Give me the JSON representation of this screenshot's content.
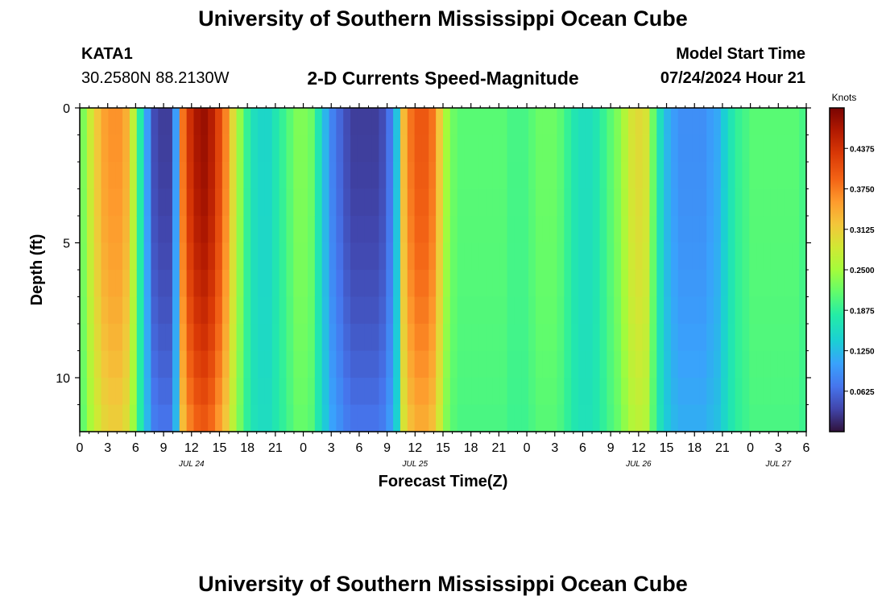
{
  "header": {
    "title": "University of Southern Mississippi Ocean Cube",
    "station_id": "KATA1",
    "coordinates": "30.2580N  88.2130W",
    "subtitle": "2-D Currents Speed-Magnitude",
    "model_start_label": "Model Start Time",
    "model_start_value": "07/24/2024 Hour 21"
  },
  "footer": {
    "title": "University of Southern Mississippi Ocean Cube"
  },
  "chart_data": {
    "type": "heatmap",
    "title": "2-D Currents Speed-Magnitude",
    "xlabel": "Forecast Time(Z)",
    "ylabel": "Depth (ft)",
    "x_tick_labels": [
      "0",
      "3",
      "6",
      "9",
      "12",
      "15",
      "18",
      "21",
      "0",
      "3",
      "6",
      "9",
      "12",
      "15",
      "18",
      "21",
      "0",
      "3",
      "6",
      "9",
      "12",
      "15",
      "18",
      "21",
      "0",
      "3",
      "6"
    ],
    "date_labels": [
      {
        "text": "JUL 24",
        "hour": 12
      },
      {
        "text": "JUL 25",
        "hour": 36
      },
      {
        "text": "JUL 26",
        "hour": 60
      },
      {
        "text": "JUL 27",
        "hour": 75
      }
    ],
    "xlim_hours": [
      0,
      78
    ],
    "y_ticks": [
      "0",
      "5",
      "10"
    ],
    "ylim_ft": [
      0,
      12
    ],
    "colorbar": {
      "label": "Knots",
      "ticks": [
        "0.0625",
        "0.1250",
        "0.1875",
        "0.2500",
        "0.3125",
        "0.3750",
        "0.4375"
      ],
      "range": [
        0,
        0.5
      ]
    },
    "surface_speeds_knots": [
      0.23,
      0.28,
      0.32,
      0.35,
      0.36,
      0.36,
      0.34,
      0.27,
      0.18,
      0.1,
      0.04,
      0.03,
      0.03,
      0.1,
      0.38,
      0.44,
      0.47,
      0.48,
      0.46,
      0.42,
      0.37,
      0.3,
      0.24,
      0.19,
      0.16,
      0.15,
      0.15,
      0.17,
      0.19,
      0.21,
      0.23,
      0.23,
      0.22,
      0.17,
      0.12,
      0.08,
      0.06,
      0.04,
      0.03,
      0.03,
      0.03,
      0.03,
      0.04,
      0.07,
      0.13,
      0.33,
      0.38,
      0.4,
      0.4,
      0.38,
      0.32,
      0.25,
      0.22,
      0.21,
      0.21,
      0.21,
      0.21,
      0.21,
      0.21,
      0.21,
      0.2,
      0.2,
      0.2,
      0.21,
      0.22,
      0.22,
      0.22,
      0.21,
      0.19,
      0.17,
      0.16,
      0.16,
      0.17,
      0.19,
      0.21,
      0.23,
      0.26,
      0.29,
      0.3,
      0.29,
      0.22,
      0.16,
      0.12,
      0.1,
      0.09,
      0.09,
      0.09,
      0.09,
      0.1,
      0.11,
      0.14,
      0.17,
      0.19,
      0.2,
      0.21,
      0.21,
      0.21,
      0.21,
      0.21,
      0.21,
      0.21,
      0.2
    ]
  }
}
